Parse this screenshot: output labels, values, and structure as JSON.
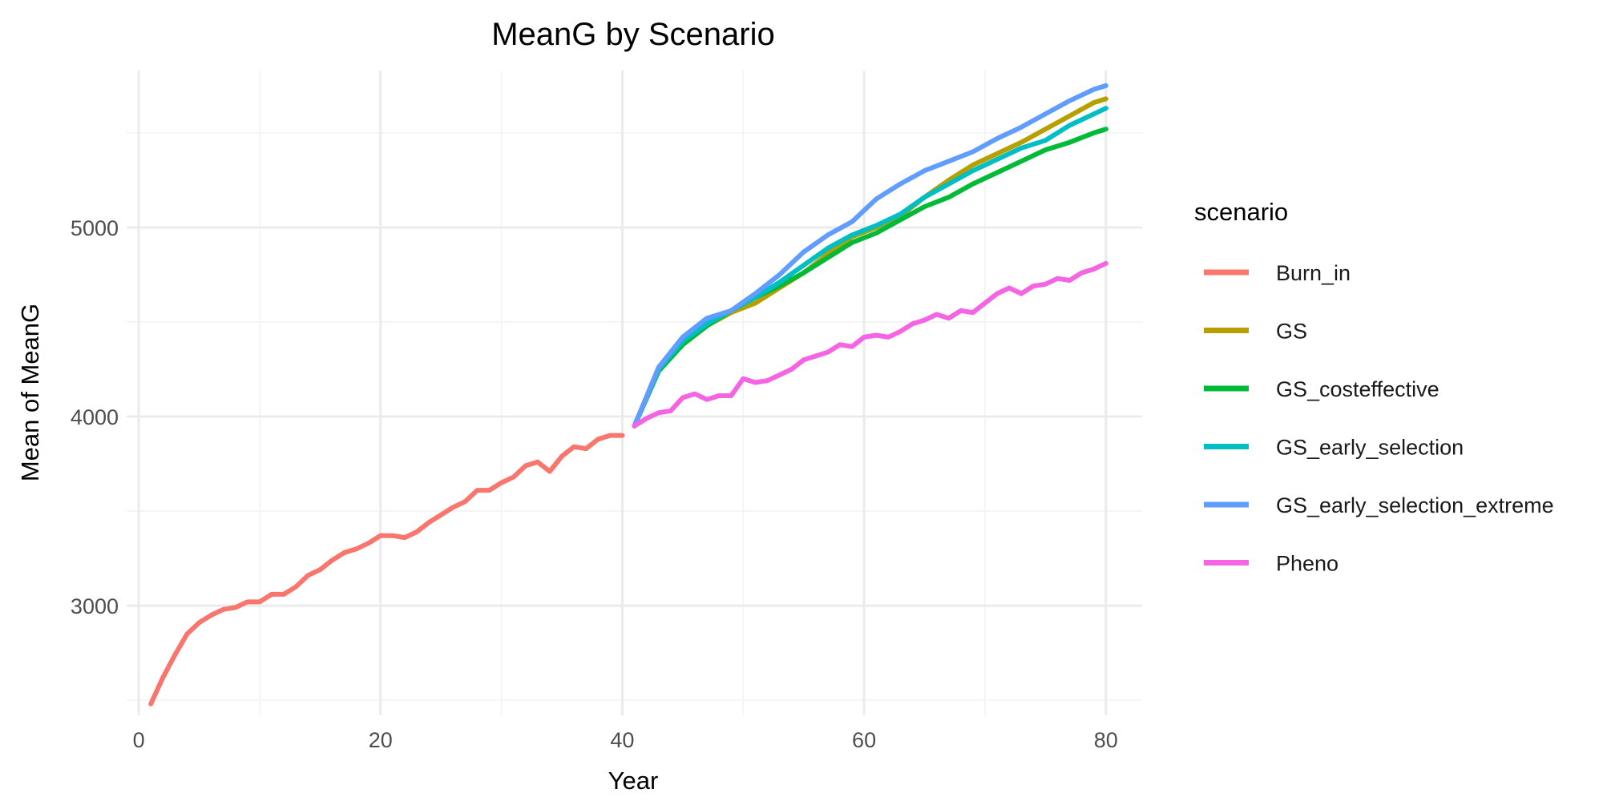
{
  "chart_data": {
    "type": "line",
    "title": "MeanG by Scenario",
    "xlabel": "Year",
    "ylabel": "Mean of MeanG",
    "xlim": [
      -1,
      83
    ],
    "ylim": [
      2420,
      5830
    ],
    "x_ticks": [
      0,
      20,
      40,
      60,
      80
    ],
    "y_ticks": [
      3000,
      4000,
      5000
    ],
    "grid": true,
    "legend": {
      "title": "scenario",
      "placement": "right"
    },
    "series": [
      {
        "name": "Burn_in",
        "color": "#F8766D",
        "x": [
          1,
          2,
          3,
          4,
          5,
          6,
          7,
          8,
          9,
          10,
          11,
          12,
          13,
          14,
          15,
          16,
          17,
          18,
          19,
          20,
          21,
          22,
          23,
          24,
          25,
          26,
          27,
          28,
          29,
          30,
          31,
          32,
          33,
          34,
          35,
          36,
          37,
          38,
          39,
          40
        ],
        "values": [
          2480,
          2620,
          2740,
          2850,
          2910,
          2950,
          2980,
          2990,
          3020,
          3020,
          3060,
          3060,
          3100,
          3160,
          3190,
          3240,
          3280,
          3300,
          3330,
          3370,
          3370,
          3360,
          3390,
          3440,
          3480,
          3520,
          3550,
          3610,
          3610,
          3650,
          3680,
          3740,
          3760,
          3710,
          3790,
          3840,
          3830,
          3880,
          3900,
          3900
        ]
      },
      {
        "name": "GS",
        "color": "#B79F00",
        "x": [
          41,
          43,
          45,
          47,
          49,
          51,
          53,
          55,
          57,
          59,
          61,
          63,
          65,
          67,
          69,
          71,
          73,
          75,
          77,
          79,
          80
        ],
        "values": [
          3950,
          4250,
          4380,
          4480,
          4550,
          4600,
          4680,
          4760,
          4860,
          4950,
          5000,
          5060,
          5160,
          5250,
          5330,
          5390,
          5450,
          5520,
          5590,
          5660,
          5680
        ]
      },
      {
        "name": "GS_costeffective",
        "color": "#00BA38",
        "x": [
          41,
          43,
          45,
          47,
          49,
          51,
          53,
          55,
          57,
          59,
          61,
          63,
          65,
          67,
          69,
          71,
          73,
          75,
          77,
          79,
          80
        ],
        "values": [
          3950,
          4240,
          4380,
          4480,
          4560,
          4630,
          4690,
          4760,
          4840,
          4920,
          4970,
          5040,
          5110,
          5160,
          5230,
          5290,
          5350,
          5410,
          5450,
          5500,
          5520
        ]
      },
      {
        "name": "GS_early_selection",
        "color": "#00BFC4",
        "x": [
          41,
          43,
          45,
          47,
          49,
          51,
          53,
          55,
          57,
          59,
          61,
          63,
          65,
          67,
          69,
          71,
          73,
          75,
          77,
          79,
          80
        ],
        "values": [
          3950,
          4250,
          4400,
          4490,
          4560,
          4630,
          4710,
          4800,
          4890,
          4960,
          5010,
          5070,
          5160,
          5230,
          5300,
          5360,
          5420,
          5460,
          5540,
          5600,
          5630
        ]
      },
      {
        "name": "GS_early_selection_extreme",
        "color": "#619CFF",
        "x": [
          41,
          43,
          45,
          47,
          49,
          51,
          53,
          55,
          57,
          59,
          61,
          63,
          65,
          67,
          69,
          71,
          73,
          75,
          77,
          79,
          80
        ],
        "values": [
          3950,
          4260,
          4420,
          4520,
          4560,
          4650,
          4750,
          4870,
          4960,
          5030,
          5150,
          5230,
          5300,
          5350,
          5400,
          5470,
          5530,
          5600,
          5670,
          5730,
          5750
        ]
      },
      {
        "name": "Pheno",
        "color": "#F564E3",
        "x": [
          41,
          42,
          43,
          44,
          45,
          46,
          47,
          48,
          49,
          50,
          51,
          52,
          53,
          54,
          55,
          56,
          57,
          58,
          59,
          60,
          61,
          62,
          63,
          64,
          65,
          66,
          67,
          68,
          69,
          70,
          71,
          72,
          73,
          74,
          75,
          76,
          77,
          78,
          79,
          80
        ],
        "values": [
          3950,
          3990,
          4020,
          4030,
          4100,
          4120,
          4090,
          4110,
          4110,
          4200,
          4180,
          4190,
          4220,
          4250,
          4300,
          4320,
          4340,
          4380,
          4370,
          4420,
          4430,
          4420,
          4450,
          4490,
          4510,
          4540,
          4520,
          4560,
          4550,
          4600,
          4650,
          4680,
          4650,
          4690,
          4700,
          4730,
          4720,
          4760,
          4780,
          4810
        ]
      }
    ]
  }
}
